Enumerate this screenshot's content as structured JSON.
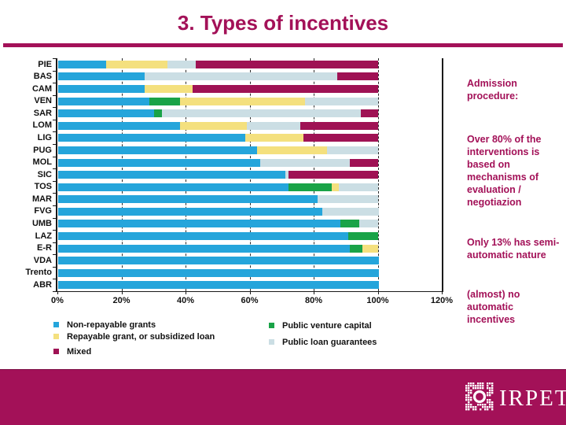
{
  "slide": {
    "title": "3. Types of incentives"
  },
  "colors": {
    "accent": "#A31158",
    "axis": "#1a1a1a",
    "blue": "#25A5DB",
    "green": "#19A347",
    "yellow": "#F4E07E",
    "pale": "#CBDEE4",
    "maroon": "#9F1254"
  },
  "chart_data": {
    "type": "bar",
    "orientation": "horizontal",
    "stacked": true,
    "unit": "percent",
    "title": "",
    "xlabel": "",
    "ylabel": "",
    "xlim": [
      0,
      120
    ],
    "x_tick_labels": [
      "0%",
      "20%",
      "40%",
      "60%",
      "80%",
      "100%",
      "120%"
    ],
    "grid": "vertical dashed every 20%",
    "legend_position": "bottom",
    "categories": [
      "PIE",
      "BAS",
      "CAM",
      "VEN",
      "SAR",
      "LOM",
      "LIG",
      "PUG",
      "MOL",
      "SIC",
      "TOS",
      "MAR",
      "FVG",
      "UMB",
      "LAZ",
      "E-R",
      "VDA",
      "Trento",
      "ABR"
    ],
    "series": [
      {
        "name": "Non-repayable grants",
        "color": "#25A5DB",
        "values": [
          15,
          27,
          27,
          28.5,
          30,
          38,
          58.5,
          62,
          63,
          71,
          72,
          81,
          82.5,
          88,
          90.5,
          91,
          100,
          100,
          100
        ]
      },
      {
        "name": "Public venture capital",
        "color": "#19A347",
        "values": [
          0,
          0,
          0,
          9.5,
          2.5,
          0,
          0,
          0,
          0,
          0,
          13.5,
          0,
          0,
          6,
          9.5,
          4,
          0,
          0,
          0
        ]
      },
      {
        "name": "Repayable grant, or subsidized loan",
        "color": "#F4E07E",
        "values": [
          19,
          0,
          15,
          39,
          0,
          21,
          18,
          22,
          0,
          0,
          2,
          0,
          0,
          0,
          0,
          5,
          0,
          0,
          0
        ]
      },
      {
        "name": "Public loan guarantees",
        "color": "#CBDEE4",
        "values": [
          9,
          60,
          0,
          23,
          62,
          16.5,
          0,
          16,
          28,
          1,
          12.5,
          19,
          17.5,
          6,
          0,
          0,
          0,
          0,
          0
        ]
      },
      {
        "name": "Mixed",
        "color": "#9F1254",
        "values": [
          57,
          13,
          58,
          0,
          5.5,
          24.5,
          23.5,
          0,
          9,
          28,
          0,
          0,
          0,
          0,
          0,
          0,
          0,
          0,
          0
        ]
      }
    ]
  },
  "legend": {
    "left": [
      {
        "label": "Non-repayable grants",
        "color": "#25A5DB"
      },
      {
        "label": "Repayable grant, or subsidized loan",
        "color": "#F4E07E"
      },
      {
        "label": "Mixed",
        "color": "#9F1254"
      }
    ],
    "right": [
      {
        "label": "Public venture capital",
        "color": "#19A347"
      },
      {
        "label": "Public loan guarantees",
        "color": "#CBDEE4"
      }
    ]
  },
  "notes": {
    "heading_lines": [
      "Admission",
      "procedure:"
    ],
    "para1_lines": [
      "Over 80% of the",
      "interventions  is",
      "based on",
      "mechanisms of",
      "evaluation /",
      "negotiazion"
    ],
    "para2_lines": [
      "Only 13% has semi-",
      "automatic nature"
    ],
    "para3_lines": [
      "(almost) no",
      "automatic",
      "incentives"
    ]
  },
  "footer": {
    "logo_text": "IRPET"
  }
}
